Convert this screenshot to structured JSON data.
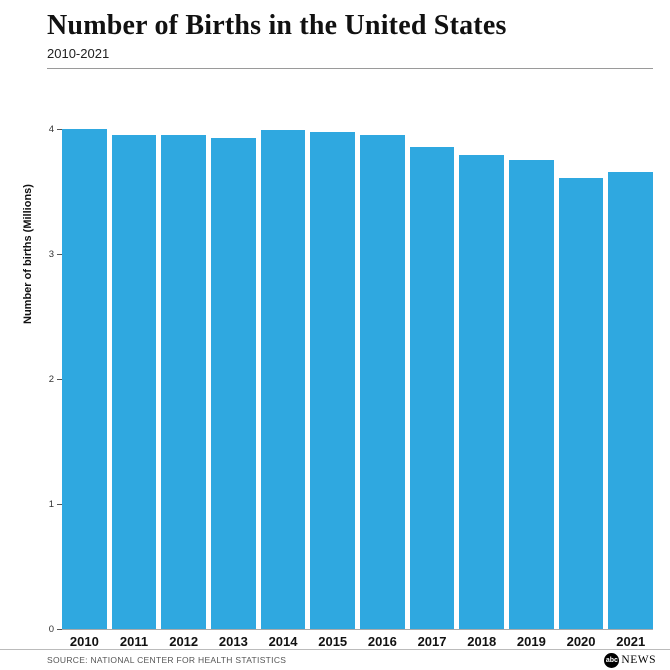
{
  "header": {
    "title": "Number of Births in the United States",
    "subtitle": "2010-2021"
  },
  "chart_data": {
    "type": "bar",
    "title": "Number of Births in the United States",
    "subtitle": "2010-2021",
    "categories": [
      "2010",
      "2011",
      "2012",
      "2013",
      "2014",
      "2015",
      "2016",
      "2017",
      "2018",
      "2019",
      "2020",
      "2021"
    ],
    "values": [
      4.0,
      3.95,
      3.95,
      3.93,
      3.99,
      3.98,
      3.95,
      3.86,
      3.79,
      3.75,
      3.61,
      3.66
    ],
    "xlabel": "",
    "ylabel": "Number of births (Millions)",
    "ylim": [
      0,
      4.45
    ],
    "yticks": [
      0,
      1,
      2,
      3,
      4
    ],
    "bar_color": "#2FA8E0",
    "grid": false,
    "legend": "none"
  },
  "footer": {
    "source": "SOURCE: NATIONAL CENTER FOR HEALTH STATISTICS",
    "logo_abc": "abc",
    "logo_news": "NEWS"
  }
}
